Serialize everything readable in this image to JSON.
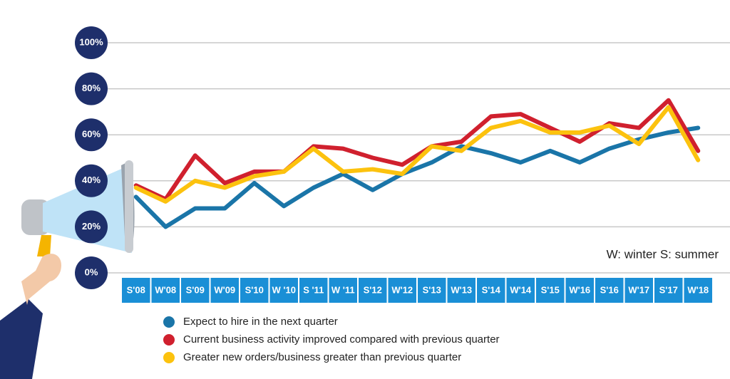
{
  "chart_data": {
    "type": "line",
    "annotation": "W: winter S: summer",
    "categories": [
      "S'08",
      "W'08",
      "S'09",
      "W'09",
      "S'10",
      "W '10",
      "S '11",
      "W '11",
      "S'12",
      "W'12",
      "S'13",
      "W'13",
      "S'14",
      "W'14",
      "S'15",
      "W'16",
      "S'16",
      "W'17",
      "S'17",
      "W'18"
    ],
    "series": [
      {
        "name": "Expect to hire in the next quarter",
        "color": "#1a75a8",
        "values": [
          33,
          20,
          28,
          28,
          39,
          29,
          37,
          43,
          36,
          43,
          48,
          55,
          52,
          48,
          53,
          48,
          54,
          58,
          61,
          63
        ]
      },
      {
        "name": "Current business activity improved compared with previous quarter",
        "color": "#d0202e",
        "values": [
          38,
          32,
          51,
          39,
          44,
          44,
          55,
          54,
          50,
          47,
          55,
          57,
          68,
          69,
          63,
          57,
          65,
          63,
          75,
          53
        ]
      },
      {
        "name": "Greater new orders/business greater than previous quarter",
        "color": "#fcc20e",
        "values": [
          37,
          31,
          40,
          37,
          42,
          44,
          54,
          44,
          45,
          43,
          55,
          53,
          63,
          66,
          61,
          61,
          64,
          56,
          72,
          49
        ]
      }
    ],
    "ylim": [
      0,
      100
    ],
    "yticks": [
      {
        "value": 0,
        "label": "0%"
      },
      {
        "value": 20,
        "label": "20%"
      },
      {
        "value": 40,
        "label": "40%"
      },
      {
        "value": 60,
        "label": "60%"
      },
      {
        "value": 80,
        "label": "80%"
      },
      {
        "value": 100,
        "label": "100%"
      }
    ],
    "grid": true
  }
}
